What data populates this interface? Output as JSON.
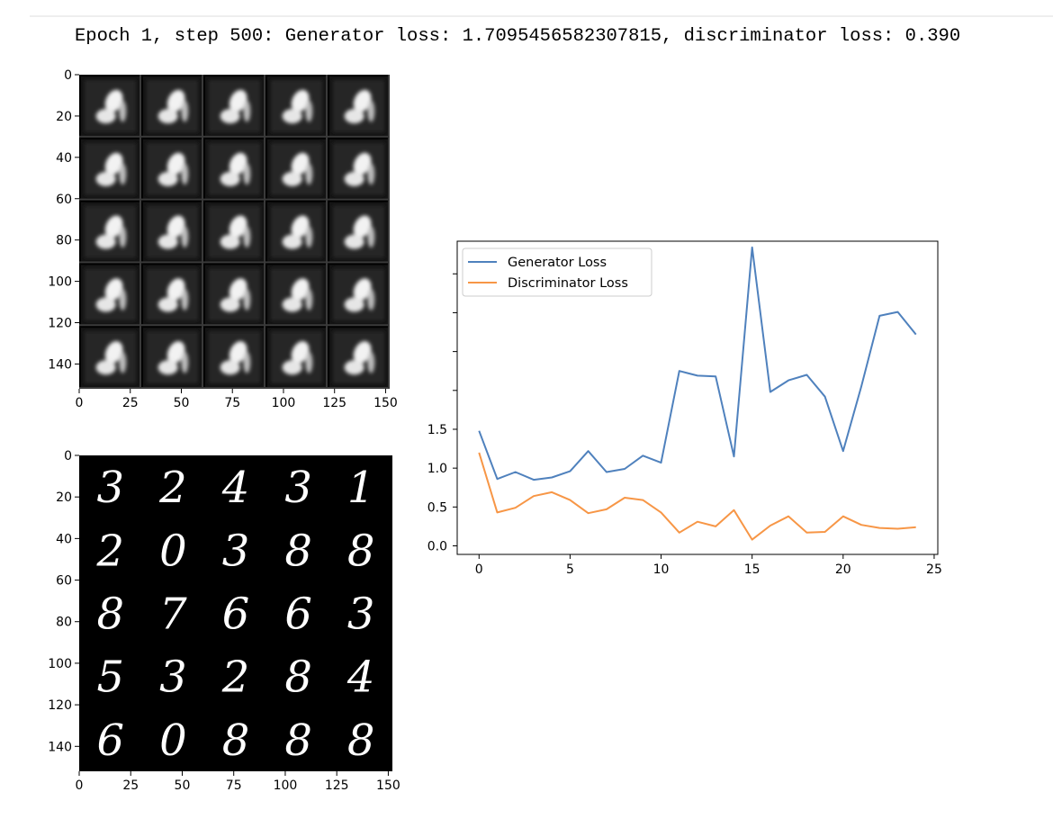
{
  "output": {
    "log_line": "Epoch 1, step 500: Generator loss: 1.7095456582307815, discriminator loss: 0.390"
  },
  "fake_image_grid": {
    "xticks": [
      "0",
      "25",
      "50",
      "75",
      "100",
      "125",
      "150"
    ],
    "yticks": [
      "0",
      "20",
      "40",
      "60",
      "80",
      "100",
      "120",
      "140"
    ]
  },
  "real_image_grid": {
    "xticks": [
      "0",
      "25",
      "50",
      "75",
      "100",
      "125",
      "150"
    ],
    "yticks": [
      "0",
      "20",
      "40",
      "60",
      "80",
      "100",
      "120",
      "140"
    ],
    "digits": [
      [
        "3",
        "2",
        "4",
        "3",
        "1"
      ],
      [
        "2",
        "0",
        "3",
        "8",
        "8"
      ],
      [
        "8",
        "7",
        "6",
        "6",
        "3"
      ],
      [
        "5",
        "3",
        "2",
        "8",
        "4"
      ],
      [
        "6",
        "0",
        "8",
        "8",
        "8"
      ]
    ]
  },
  "chart_data": {
    "type": "line",
    "x": [
      0,
      1,
      2,
      3,
      4,
      5,
      6,
      7,
      8,
      9,
      10,
      11,
      12,
      13,
      14,
      15,
      16,
      17,
      18,
      19,
      20,
      21,
      22,
      23,
      24
    ],
    "series": [
      {
        "name": "Generator Loss",
        "color": "#4f81bd",
        "values": [
          1.48,
          0.86,
          0.95,
          0.85,
          0.88,
          0.96,
          1.22,
          0.95,
          0.99,
          1.16,
          1.07,
          2.25,
          2.19,
          2.18,
          1.15,
          3.84,
          1.98,
          2.13,
          2.2,
          1.92,
          1.22,
          2.05,
          2.96,
          3.01,
          2.72
        ]
      },
      {
        "name": "Discriminator Loss",
        "color": "#f79646",
        "values": [
          1.2,
          0.43,
          0.49,
          0.64,
          0.69,
          0.59,
          0.42,
          0.47,
          0.62,
          0.59,
          0.43,
          0.17,
          0.31,
          0.25,
          0.46,
          0.08,
          0.26,
          0.38,
          0.17,
          0.18,
          0.38,
          0.27,
          0.23,
          0.22,
          0.24
        ]
      }
    ],
    "xticks": [
      0,
      5,
      10,
      15,
      20,
      25
    ],
    "yticks": [
      0.0,
      0.5,
      1.0,
      1.5
    ],
    "ytick_labels": [
      "0.0",
      "0.5",
      "1.0",
      "1.5"
    ],
    "xlim": [
      -1.2,
      25.2
    ],
    "ylim": [
      -0.11,
      3.92
    ],
    "legend_location": "upper left"
  }
}
